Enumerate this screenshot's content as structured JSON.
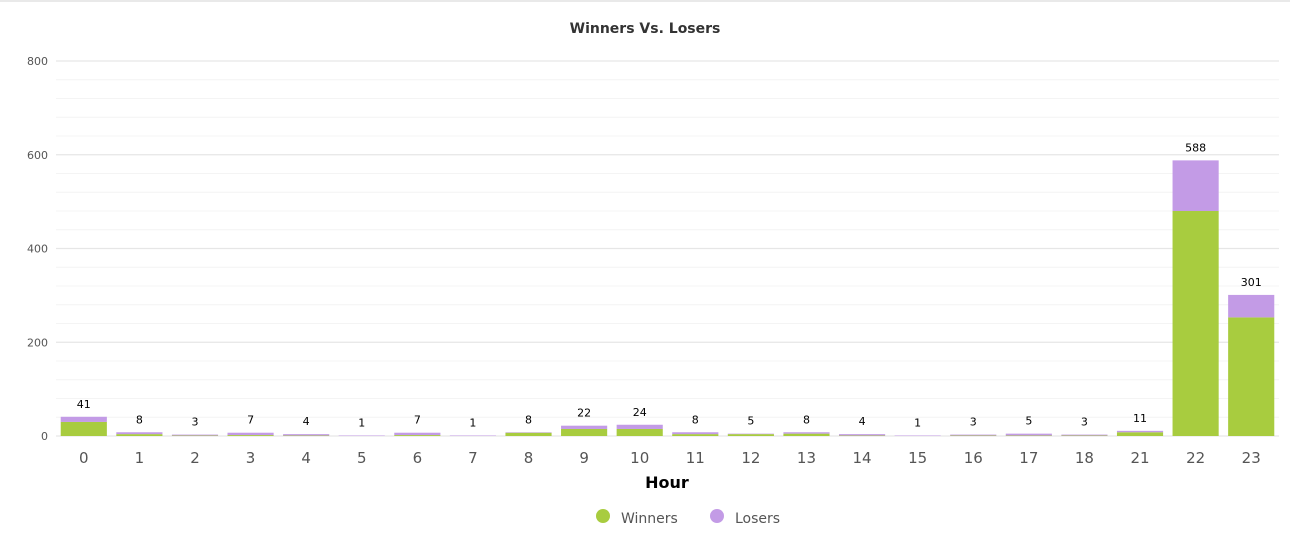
{
  "chart_data": {
    "type": "bar",
    "stacked": true,
    "title": "Winners Vs. Losers",
    "xlabel": "Hour",
    "ylabel": "",
    "ylim": [
      0,
      800
    ],
    "yticks": [
      0,
      200,
      400,
      600,
      800
    ],
    "grid": true,
    "legend_position": "bottom",
    "categories": [
      "0",
      "1",
      "2",
      "3",
      "4",
      "5",
      "6",
      "7",
      "8",
      "9",
      "10",
      "11",
      "12",
      "13",
      "14",
      "15",
      "16",
      "17",
      "18",
      "21",
      "22",
      "23"
    ],
    "series": [
      {
        "name": "Winners",
        "color": "#a8cc3f",
        "values": [
          30,
          4,
          1,
          2,
          1,
          0,
          2,
          0,
          7,
          15,
          15,
          4,
          4,
          5,
          1,
          0,
          1,
          1,
          1,
          8,
          480,
          253
        ]
      },
      {
        "name": "Losers",
        "color": "#c39be6",
        "values": [
          11,
          4,
          2,
          5,
          3,
          1,
          5,
          1,
          1,
          7,
          9,
          4,
          1,
          3,
          3,
          1,
          2,
          4,
          2,
          3,
          108,
          48
        ]
      }
    ],
    "totals": [
      41,
      8,
      3,
      7,
      4,
      1,
      7,
      1,
      8,
      22,
      24,
      8,
      5,
      8,
      4,
      1,
      3,
      5,
      3,
      11,
      588,
      301
    ]
  }
}
